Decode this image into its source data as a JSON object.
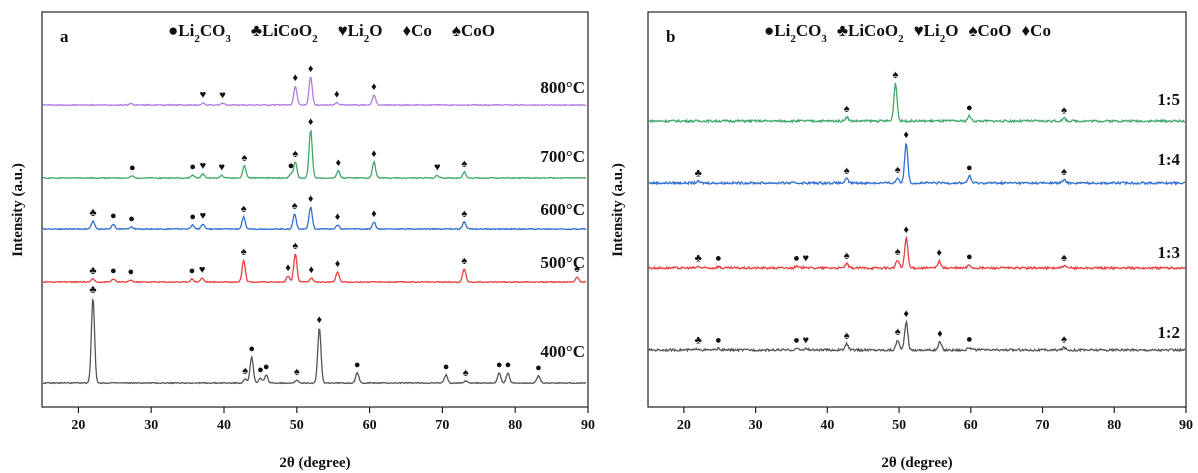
{
  "chart_data": [
    {
      "panel": "a",
      "type": "line",
      "xlabel": "2θ (degree)",
      "ylabel": "Intensity (a.u.)",
      "xlim": [
        15,
        90
      ],
      "xticks": [
        20,
        30,
        40,
        50,
        60,
        70,
        80,
        90
      ],
      "legend": [
        {
          "symbol": "●",
          "label": "Li2CO3",
          "parts": [
            [
              "Li",
              ""
            ],
            [
              "2",
              "sub"
            ],
            [
              "CO",
              ""
            ],
            [
              "3",
              "sub"
            ]
          ]
        },
        {
          "symbol": "♣",
          "label": "LiCoO2",
          "parts": [
            [
              "LiCoO",
              ""
            ],
            [
              "2",
              "sub"
            ]
          ]
        },
        {
          "symbol": "♥",
          "label": "Li2O",
          "parts": [
            [
              "Li",
              ""
            ],
            [
              "2",
              "sub"
            ],
            [
              "O",
              ""
            ]
          ]
        },
        {
          "symbol": "♦",
          "label": "Co",
          "parts": [
            [
              "Co",
              ""
            ]
          ]
        },
        {
          "symbol": "♠",
          "label": "CoO",
          "parts": [
            [
              "CoO",
              ""
            ]
          ]
        }
      ],
      "series": [
        {
          "name": "800°C",
          "color": "#b07ce0",
          "peaks": [
            [
              27.2,
              1.5
            ],
            [
              37.1,
              2
            ],
            [
              39.8,
              1.5
            ],
            [
              49.8,
              19
            ],
            [
              51.9,
              28
            ],
            [
              55.5,
              2.5
            ],
            [
              60.6,
              10
            ]
          ],
          "markers": [
            [
              37.1,
              "♥"
            ],
            [
              39.8,
              "♥"
            ],
            [
              49.8,
              "♦"
            ],
            [
              51.9,
              "♦"
            ],
            [
              55.5,
              "♦"
            ],
            [
              60.6,
              "♦"
            ]
          ]
        },
        {
          "name": "700°C",
          "color": "#3ea86a",
          "peaks": [
            [
              27.4,
              2
            ],
            [
              35.7,
              3
            ],
            [
              37.1,
              4
            ],
            [
              39.7,
              2.5
            ],
            [
              42.8,
              12
            ],
            [
              49.2,
              4
            ],
            [
              49.8,
              16
            ],
            [
              51.9,
              48
            ],
            [
              55.7,
              7
            ],
            [
              60.6,
              16
            ],
            [
              69.3,
              2.5
            ],
            [
              73.0,
              6
            ]
          ],
          "markers": [
            [
              27.4,
              "●"
            ],
            [
              35.7,
              "●"
            ],
            [
              37.1,
              "♥"
            ],
            [
              39.7,
              "♥"
            ],
            [
              42.8,
              "♠"
            ],
            [
              49.2,
              "●"
            ],
            [
              49.8,
              "♠"
            ],
            [
              51.9,
              "♦"
            ],
            [
              55.7,
              "♦"
            ],
            [
              60.6,
              "♦"
            ],
            [
              69.3,
              "♥"
            ],
            [
              73.0,
              "♠"
            ]
          ]
        },
        {
          "name": "600°C",
          "color": "#2f6fd1",
          "peaks": [
            [
              22.0,
              8
            ],
            [
              24.8,
              5
            ],
            [
              27.3,
              2
            ],
            [
              35.7,
              4
            ],
            [
              37.1,
              5
            ],
            [
              42.7,
              12
            ],
            [
              49.7,
              15
            ],
            [
              51.9,
              22
            ],
            [
              55.6,
              4
            ],
            [
              60.6,
              7
            ],
            [
              73.0,
              7
            ]
          ],
          "markers": [
            [
              22.0,
              "♣"
            ],
            [
              24.8,
              "●"
            ],
            [
              27.3,
              "●"
            ],
            [
              35.7,
              "●"
            ],
            [
              37.1,
              "♥"
            ],
            [
              42.7,
              "♠"
            ],
            [
              49.7,
              "♠"
            ],
            [
              51.9,
              "♦"
            ],
            [
              55.6,
              "♦"
            ],
            [
              60.6,
              "♦"
            ],
            [
              73.0,
              "♠"
            ]
          ]
        },
        {
          "name": "500°C",
          "color": "#e8403f",
          "peaks": [
            [
              22.0,
              3
            ],
            [
              24.8,
              3
            ],
            [
              27.2,
              2
            ],
            [
              35.6,
              3
            ],
            [
              37.0,
              4
            ],
            [
              42.7,
              22
            ],
            [
              48.8,
              6
            ],
            [
              49.8,
              28
            ],
            [
              52.0,
              4
            ],
            [
              55.6,
              10
            ],
            [
              73.0,
              13
            ],
            [
              88.5,
              5
            ]
          ],
          "markers": [
            [
              22.0,
              "♣"
            ],
            [
              24.8,
              "●"
            ],
            [
              27.2,
              "●"
            ],
            [
              35.6,
              "●"
            ],
            [
              37.0,
              "♥"
            ],
            [
              42.7,
              "♠"
            ],
            [
              48.8,
              "♦"
            ],
            [
              49.8,
              "♠"
            ],
            [
              52.0,
              "♦"
            ],
            [
              55.6,
              "♦"
            ],
            [
              73.0,
              "♠"
            ],
            [
              88.5,
              "♠"
            ]
          ]
        },
        {
          "name": "400°C",
          "color": "#555555",
          "peaks": [
            [
              22.0,
              85
            ],
            [
              42.9,
              4
            ],
            [
              43.8,
              26
            ],
            [
              45.0,
              5
            ],
            [
              45.8,
              8
            ],
            [
              50.0,
              3
            ],
            [
              53.1,
              55
            ],
            [
              58.3,
              10
            ],
            [
              70.5,
              8
            ],
            [
              73.2,
              2
            ],
            [
              77.8,
              10
            ],
            [
              79.0,
              10
            ],
            [
              83.2,
              7
            ]
          ],
          "markers": [
            [
              22.0,
              "♣"
            ],
            [
              42.9,
              "♠"
            ],
            [
              43.8,
              "●"
            ],
            [
              45.0,
              "●"
            ],
            [
              45.8,
              "●"
            ],
            [
              50.0,
              "♠"
            ],
            [
              53.1,
              "♦"
            ],
            [
              58.3,
              "●"
            ],
            [
              70.5,
              "●"
            ],
            [
              73.2,
              "♠"
            ],
            [
              77.8,
              "●"
            ],
            [
              79.0,
              "●"
            ],
            [
              83.2,
              "●"
            ]
          ]
        }
      ]
    },
    {
      "panel": "b",
      "type": "line",
      "xlabel": "2θ (degree)",
      "ylabel": "Intensity (a.u.)",
      "xlim": [
        15,
        90
      ],
      "xticks": [
        20,
        30,
        40,
        50,
        60,
        70,
        80,
        90
      ],
      "legend": [
        {
          "symbol": "●",
          "label": "Li2CO3",
          "parts": [
            [
              "Li",
              ""
            ],
            [
              "2",
              "sub"
            ],
            [
              "CO",
              ""
            ],
            [
              "3",
              "sub"
            ]
          ]
        },
        {
          "symbol": "♣",
          "label": "LiCoO2",
          "parts": [
            [
              "LiCoO",
              ""
            ],
            [
              "2",
              "sub"
            ]
          ]
        },
        {
          "symbol": "♥",
          "label": "Li2O",
          "parts": [
            [
              "Li",
              ""
            ],
            [
              "2",
              "sub"
            ],
            [
              "O",
              ""
            ]
          ]
        },
        {
          "symbol": "♠",
          "label": "CoO",
          "parts": [
            [
              "CoO",
              ""
            ]
          ]
        },
        {
          "symbol": "♦",
          "label": "Co",
          "parts": [
            [
              "Co",
              ""
            ]
          ]
        }
      ],
      "series": [
        {
          "name": "1:5",
          "color": "#3ea86a",
          "peaks": [
            [
              42.7,
              4
            ],
            [
              49.5,
              38
            ],
            [
              59.8,
              5
            ],
            [
              73.0,
              2.5
            ]
          ],
          "markers": [
            [
              42.7,
              "♠"
            ],
            [
              49.5,
              "♠"
            ],
            [
              59.8,
              "●"
            ],
            [
              73.0,
              "♠"
            ]
          ]
        },
        {
          "name": "1:4",
          "color": "#2f6fd1",
          "peaks": [
            [
              22.0,
              1.5
            ],
            [
              42.7,
              4
            ],
            [
              49.8,
              5
            ],
            [
              51.0,
              40
            ],
            [
              59.8,
              7
            ],
            [
              73.0,
              3
            ]
          ],
          "markers": [
            [
              22.0,
              "♣"
            ],
            [
              42.7,
              "♠"
            ],
            [
              49.8,
              "♠"
            ],
            [
              51.0,
              "♦"
            ],
            [
              59.8,
              "●"
            ],
            [
              73.0,
              "♠"
            ]
          ]
        },
        {
          "name": "1:3",
          "color": "#e8403f",
          "peaks": [
            [
              22.0,
              1.5
            ],
            [
              24.8,
              1.5
            ],
            [
              35.7,
              1.5
            ],
            [
              37.0,
              1.5
            ],
            [
              42.7,
              4
            ],
            [
              49.8,
              8
            ],
            [
              51.0,
              30
            ],
            [
              55.6,
              7
            ],
            [
              59.8,
              3
            ],
            [
              73.0,
              2
            ]
          ],
          "markers": [
            [
              22.0,
              "♣"
            ],
            [
              24.8,
              "●"
            ],
            [
              35.7,
              "●"
            ],
            [
              37.0,
              "♥"
            ],
            [
              42.7,
              "♠"
            ],
            [
              49.8,
              "♠"
            ],
            [
              51.0,
              "♦"
            ],
            [
              55.6,
              "♦"
            ],
            [
              59.8,
              "●"
            ],
            [
              73.0,
              "♠"
            ]
          ]
        },
        {
          "name": "1:2",
          "color": "#555555",
          "peaks": [
            [
              22.0,
              1.5
            ],
            [
              24.8,
              1.5
            ],
            [
              35.7,
              1.5
            ],
            [
              37.0,
              1.5
            ],
            [
              42.7,
              6
            ],
            [
              49.8,
              10
            ],
            [
              51.0,
              28
            ],
            [
              55.7,
              8
            ],
            [
              59.8,
              2.5
            ],
            [
              73.0,
              2.5
            ]
          ],
          "markers": [
            [
              22.0,
              "♣"
            ],
            [
              24.8,
              "●"
            ],
            [
              35.7,
              "●"
            ],
            [
              37.0,
              "♥"
            ],
            [
              42.7,
              "♠"
            ],
            [
              49.8,
              "♠"
            ],
            [
              51.0,
              "♦"
            ],
            [
              55.7,
              "♦"
            ],
            [
              59.8,
              "●"
            ],
            [
              73.0,
              "♠"
            ]
          ]
        }
      ]
    }
  ]
}
